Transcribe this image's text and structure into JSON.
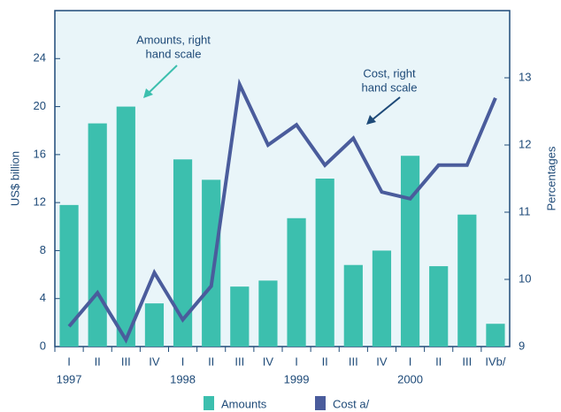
{
  "chart_data": {
    "type": "bar_line",
    "categories": [
      "I",
      "II",
      "III",
      "IV",
      "I",
      "II",
      "III",
      "IV",
      "I",
      "II",
      "III",
      "IV",
      "I",
      "II",
      "III",
      "IVb/"
    ],
    "years": [
      "1997",
      null,
      null,
      null,
      "1998",
      null,
      null,
      null,
      "1999",
      null,
      null,
      null,
      "2000",
      null,
      null,
      null
    ],
    "series": [
      {
        "name": "Amounts",
        "type": "bar",
        "color": "#3cbfae",
        "values": [
          11.8,
          18.6,
          20.0,
          3.6,
          15.6,
          13.9,
          5.0,
          5.5,
          10.7,
          14.0,
          6.8,
          8.0,
          15.9,
          6.7,
          11.0,
          1.9
        ]
      },
      {
        "name": "Cost a/",
        "type": "line",
        "axis": "y2",
        "color": "#4a5c9c",
        "values": [
          9.3,
          9.8,
          9.1,
          10.1,
          9.4,
          9.9,
          12.9,
          12.0,
          12.3,
          11.7,
          12.1,
          11.3,
          11.2,
          11.7,
          11.7,
          12.7
        ]
      }
    ],
    "ylabel": "US$ billion",
    "y2label": "Percentages",
    "ylim": [
      0,
      28
    ],
    "yticks": [
      0,
      4,
      8,
      12,
      16,
      20,
      24
    ],
    "y2lim": [
      9,
      14
    ],
    "y2ticks": [
      9,
      10,
      11,
      12,
      13
    ],
    "annotations": [
      {
        "lines": [
          "Amounts, right",
          "hand scale"
        ]
      },
      {
        "lines": [
          "Cost, right",
          "hand scale"
        ]
      }
    ]
  }
}
